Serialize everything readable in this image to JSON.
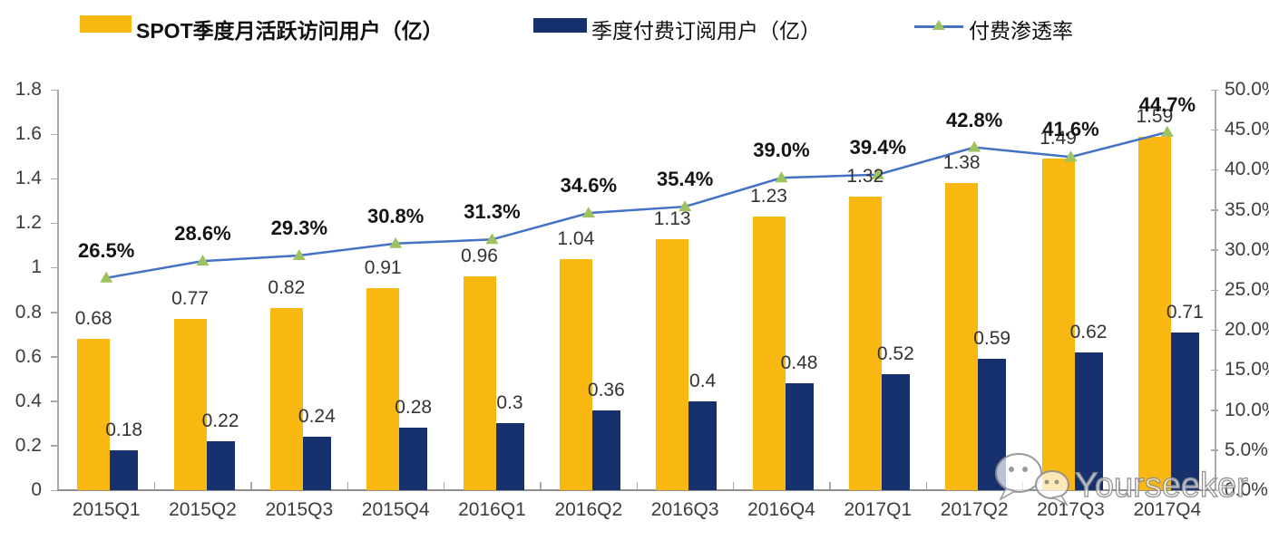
{
  "legend": {
    "items": [
      {
        "label": "SPOT季度月活跃访问用户（亿）",
        "kind": "bar-swatch",
        "swatch_color": "#F9B712",
        "bold": true
      },
      {
        "label": "季度付费订阅用户（亿）",
        "kind": "bar-swatch",
        "swatch_color": "#16316E",
        "bold": false
      },
      {
        "label": "付费渗透率",
        "kind": "line-marker",
        "line_color": "#4472C4",
        "marker_color": "#9DC360",
        "bold": false
      }
    ]
  },
  "chart_data": {
    "type": "bar",
    "subtype": "grouped-bars-with-line",
    "title": "",
    "categories": [
      "2015Q1",
      "2015Q2",
      "2015Q3",
      "2015Q4",
      "2016Q1",
      "2016Q2",
      "2016Q3",
      "2016Q4",
      "2017Q1",
      "2017Q2",
      "2017Q3",
      "2017Q4"
    ],
    "series": [
      {
        "name": "SPOT季度月活跃访问用户（亿）",
        "type": "bar",
        "axis": "left",
        "color": "#F9B712",
        "values": [
          0.68,
          0.77,
          0.82,
          0.91,
          0.96,
          1.04,
          1.13,
          1.23,
          1.32,
          1.38,
          1.49,
          1.59
        ],
        "labels": [
          "0.68",
          "0.77",
          "0.82",
          "0.91",
          "0.96",
          "1.04",
          "1.13",
          "1.23",
          "1.32",
          "1.38",
          "1.49",
          "1.59"
        ]
      },
      {
        "name": "季度付费订阅用户（亿）",
        "type": "bar",
        "axis": "left",
        "color": "#16316E",
        "values": [
          0.18,
          0.22,
          0.24,
          0.28,
          0.3,
          0.36,
          0.4,
          0.48,
          0.52,
          0.59,
          0.62,
          0.71
        ],
        "labels": [
          "0.18",
          "0.22",
          "0.24",
          "0.28",
          "0.3",
          "0.36",
          "0.4",
          "0.48",
          "0.52",
          "0.59",
          "0.62",
          "0.71"
        ]
      },
      {
        "name": "付费渗透率",
        "type": "line",
        "axis": "right",
        "color": "#4472C4",
        "marker": "triangle",
        "marker_color": "#9DC360",
        "values": [
          26.5,
          28.6,
          29.3,
          30.8,
          31.3,
          34.6,
          35.4,
          39.0,
          39.4,
          42.8,
          41.6,
          44.7
        ],
        "labels": [
          "26.5%",
          "28.6%",
          "29.3%",
          "30.8%",
          "31.3%",
          "34.6%",
          "35.4%",
          "39.0%",
          "39.4%",
          "42.8%",
          "41.6%",
          "44.7%"
        ]
      }
    ],
    "left_axis": {
      "min": 0,
      "max": 1.8,
      "step": 0.2,
      "tick_labels": [
        "0",
        "0.2",
        "0.4",
        "0.6",
        "0.8",
        "1",
        "1.2",
        "1.4",
        "1.6",
        "1.8"
      ]
    },
    "right_axis": {
      "min": 0,
      "max": 50,
      "step": 5,
      "tick_labels": [
        "0.0%",
        "5.0%",
        "10.0%",
        "15.0%",
        "20.0%",
        "25.0%",
        "30.0%",
        "35.0%",
        "40.0%",
        "45.0%",
        "50.0%"
      ]
    },
    "grid": false,
    "legend_position": "top"
  },
  "watermark": {
    "text": "Yourseeker",
    "icon": "wechat-chat-bubbles-icon"
  },
  "colors": {
    "bar_mau": "#F9B712",
    "bar_subs": "#16316E",
    "line": "#4472C4",
    "marker": "#9DC360",
    "axis": "#A9A9A9",
    "value_text": "#333333",
    "pct_text": "#141414"
  }
}
